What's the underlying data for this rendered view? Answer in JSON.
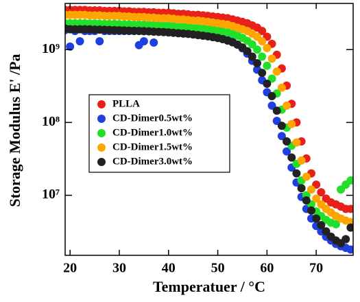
{
  "chart_data": {
    "type": "scatter",
    "x_label": "Temperatuer / °C",
    "y_label": "Storage Modulus E' /Pa",
    "xlim": [
      19,
      77.5
    ],
    "ylim": [
      1500000,
      4300000000
    ],
    "xticks": [
      20,
      30,
      40,
      50,
      60,
      70
    ],
    "yticks": [
      {
        "value": 10000000,
        "label": "10⁷"
      },
      {
        "value": 100000000,
        "label": "10⁸"
      },
      {
        "value": 1000000000,
        "label": "10⁹"
      }
    ],
    "yscale": "log",
    "legend": "center-left",
    "x": [
      19,
      20,
      21,
      22,
      23,
      24,
      25,
      26,
      27,
      28,
      29,
      30,
      31,
      32,
      33,
      34,
      35,
      36,
      37,
      38,
      39,
      40,
      41,
      42,
      43,
      44,
      45,
      46,
      47,
      48,
      49,
      50,
      51,
      52,
      53,
      54,
      55,
      56,
      57,
      58,
      59,
      60,
      61,
      62,
      63,
      64,
      65,
      66,
      67,
      68,
      69,
      70,
      71,
      72,
      73,
      74,
      75,
      76,
      77
    ],
    "series": [
      {
        "name": "PLLA",
        "color": "#e8201a",
        "values": [
          3500000000.0,
          3500000000.0,
          3500000000.0,
          3500000000.0,
          3500000000.0,
          3450000000.0,
          3450000000.0,
          3450000000.0,
          3400000000.0,
          3400000000.0,
          3400000000.0,
          3400000000.0,
          3350000000.0,
          3350000000.0,
          3300000000.0,
          3300000000.0,
          3300000000.0,
          3250000000.0,
          3250000000.0,
          3200000000.0,
          3200000000.0,
          3200000000.0,
          3150000000.0,
          3100000000.0,
          3100000000.0,
          3050000000.0,
          3000000000.0,
          3000000000.0,
          2950000000.0,
          2900000000.0,
          2850000000.0,
          2800000000.0,
          2750000000.0,
          2700000000.0,
          2600000000.0,
          2500000000.0,
          2400000000.0,
          2300000000.0,
          2150000000.0,
          2000000000.0,
          1800000000.0,
          1500000000.0,
          1200000000.0,
          850000000.0,
          550000000.0,
          320000000.0,
          180000000.0,
          100000000.0,
          55000000.0,
          32000000.0,
          20000000.0,
          14000000.0,
          11000000.0,
          9000000.0,
          8000000.0,
          7500000.0,
          7000000.0,
          6500000.0,
          6500000.0
        ]
      },
      {
        "name": "CD-Dimer0.5wt%",
        "color": "#1f3fe0",
        "values": [
          1850000000.0,
          1100000000.0,
          1800000000.0,
          1300000000.0,
          1800000000.0,
          1800000000.0,
          1800000000.0,
          1300000000.0,
          1800000000.0,
          1800000000.0,
          1800000000.0,
          1800000000.0,
          1800000000.0,
          1800000000.0,
          1800000000.0,
          1150000000.0,
          1300000000.0,
          1800000000.0,
          1250000000.0,
          1800000000.0,
          1780000000.0,
          1770000000.0,
          1750000000.0,
          1740000000.0,
          1720000000.0,
          1700000000.0,
          1680000000.0,
          1650000000.0,
          1620000000.0,
          1580000000.0,
          1540000000.0,
          1500000000.0,
          1440000000.0,
          1370000000.0,
          1280000000.0,
          1170000000.0,
          1040000000.0,
          880000000.0,
          700000000.0,
          530000000.0,
          380000000.0,
          260000000.0,
          170000000.0,
          105000000.0,
          65000000.0,
          40000000.0,
          24000000.0,
          15000000.0,
          9500000.0,
          6500000.0,
          4800000.0,
          3800000.0,
          3200000.0,
          2700000.0,
          2400000.0,
          2150000.0,
          2000000.0,
          1900000.0,
          1800000.0
        ]
      },
      {
        "name": "CD-Dimer1.0wt%",
        "color": "#22e02a",
        "values": [
          2300000000.0,
          2300000000.0,
          2300000000.0,
          2300000000.0,
          2300000000.0,
          2280000000.0,
          2280000000.0,
          2270000000.0,
          2250000000.0,
          2250000000.0,
          2250000000.0,
          2240000000.0,
          2220000000.0,
          2220000000.0,
          2200000000.0,
          2200000000.0,
          2200000000.0,
          2180000000.0,
          2170000000.0,
          2150000000.0,
          2150000000.0,
          2130000000.0,
          2100000000.0,
          2080000000.0,
          2060000000.0,
          2040000000.0,
          2000000000.0,
          1980000000.0,
          1950000000.0,
          1920000000.0,
          1880000000.0,
          1840000000.0,
          1780000000.0,
          1720000000.0,
          1640000000.0,
          1550000000.0,
          1450000000.0,
          1320000000.0,
          1180000000.0,
          1000000000.0,
          800000000.0,
          600000000.0,
          400000000.0,
          250000000.0,
          150000000.0,
          85000000.0,
          48000000.0,
          27000000.0,
          16000000.0,
          10000000.0,
          7500000.0,
          6000000.0,
          5200000.0,
          4600000.0,
          4200000.0,
          4000000.0,
          12000000.0,
          14000000.0,
          16000000.0
        ]
      },
      {
        "name": "CD-Dimer1.5wt%",
        "color": "#ffa500",
        "values": [
          3000000000.0,
          3000000000.0,
          3000000000.0,
          3000000000.0,
          3000000000.0,
          2950000000.0,
          2950000000.0,
          2950000000.0,
          2900000000.0,
          2900000000.0,
          2900000000.0,
          2900000000.0,
          2850000000.0,
          2850000000.0,
          2800000000.0,
          2800000000.0,
          2800000000.0,
          2750000000.0,
          2750000000.0,
          2700000000.0,
          2700000000.0,
          2700000000.0,
          2650000000.0,
          2600000000.0,
          2600000000.0,
          2550000000.0,
          2500000000.0,
          2500000000.0,
          2450000000.0,
          2400000000.0,
          2350000000.0,
          2300000000.0,
          2250000000.0,
          2200000000.0,
          2100000000.0,
          2000000000.0,
          1900000000.0,
          1800000000.0,
          1650000000.0,
          1500000000.0,
          1300000000.0,
          1050000000.0,
          750000000.0,
          500000000.0,
          300000000.0,
          170000000.0,
          95000000.0,
          53000000.0,
          30000000.0,
          18000000.0,
          12000000.0,
          9000000.0,
          7500000.0,
          6500000.0,
          5800000.0,
          5200000.0,
          4800000.0,
          4500000.0,
          4300000.0
        ]
      },
      {
        "name": "CD-Dimer3.0wt%",
        "color": "#222222",
        "values": [
          1950000000.0,
          1900000000.0,
          1900000000.0,
          1900000000.0,
          1900000000.0,
          1900000000.0,
          1880000000.0,
          1880000000.0,
          1870000000.0,
          1860000000.0,
          1850000000.0,
          1840000000.0,
          1830000000.0,
          1820000000.0,
          1810000000.0,
          1800000000.0,
          1790000000.0,
          1780000000.0,
          1760000000.0,
          1750000000.0,
          1740000000.0,
          1720000000.0,
          1700000000.0,
          1680000000.0,
          1660000000.0,
          1640000000.0,
          1610000000.0,
          1580000000.0,
          1550000000.0,
          1520000000.0,
          1480000000.0,
          1440000000.0,
          1390000000.0,
          1330000000.0,
          1260000000.0,
          1170000000.0,
          1070000000.0,
          950000000.0,
          800000000.0,
          650000000.0,
          480000000.0,
          340000000.0,
          230000000.0,
          145000000.0,
          90000000.0,
          55000000.0,
          33000000.0,
          20000000.0,
          12500000.0,
          8500000.0,
          6200000.0,
          4800000.0,
          3900000.0,
          3200000.0,
          2700000.0,
          2400000.0,
          2200000.0,
          2500000.0,
          3600000.0
        ]
      }
    ]
  }
}
